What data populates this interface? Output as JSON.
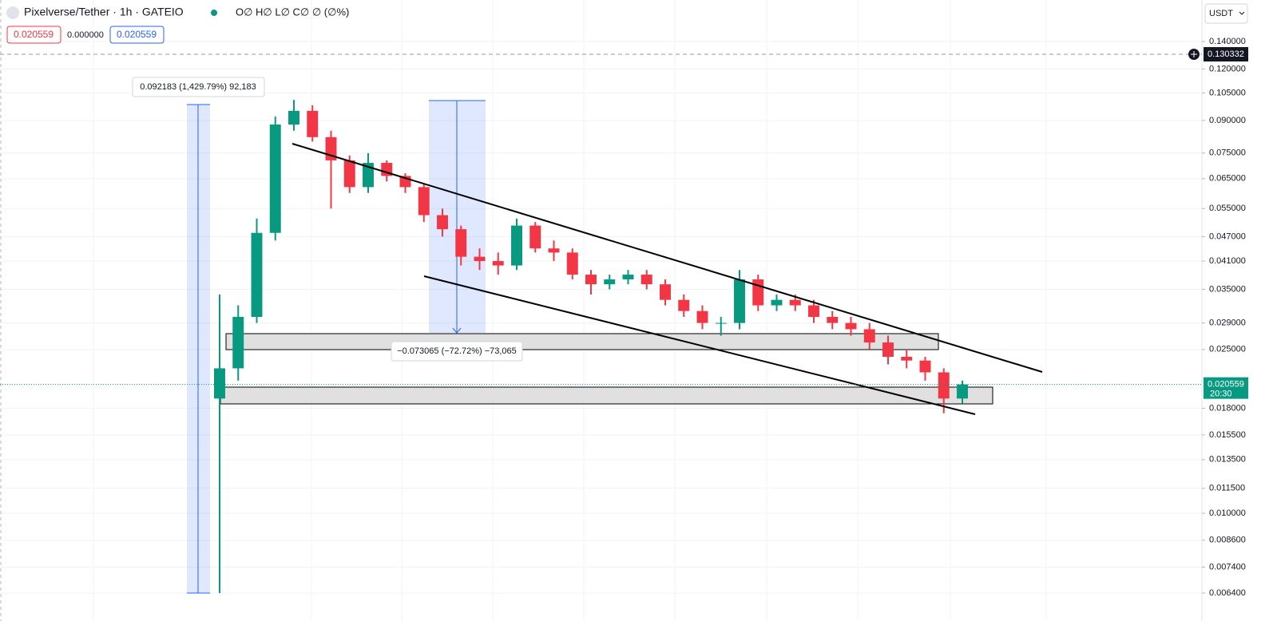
{
  "header": {
    "symbol": "Pixelverse/Tether · 1h · GATEIO",
    "ohlc": "O∅ H∅ L∅ C∅ ∅ (∅%)",
    "sell": "0.020559",
    "spread": "0.000000",
    "buy": "0.020559",
    "currency": "USDT"
  },
  "annotations": {
    "rise": "0.092183 (1,429.79%) 92,183",
    "fall": "−0.073065 (−72.72%) −73,065"
  },
  "crosshair": {
    "value": 0.130332,
    "label": "0.130332"
  },
  "last_price": {
    "value": 0.020559,
    "label": "0.020559",
    "countdown": "20:30"
  },
  "chart_data": {
    "type": "candlestick",
    "log_scale": true,
    "grid": true,
    "up_color": "#089981",
    "down_color": "#f23645",
    "ylim": [
      0.0064,
      0.14
    ],
    "yticks": [
      {
        "value": 0.14,
        "label": "0.140000"
      },
      {
        "value": 0.12,
        "label": "0.120000"
      },
      {
        "value": 0.105,
        "label": "0.105000"
      },
      {
        "value": 0.09,
        "label": "0.090000"
      },
      {
        "value": 0.075,
        "label": "0.075000"
      },
      {
        "value": 0.065,
        "label": "0.065000"
      },
      {
        "value": 0.055,
        "label": "0.055000"
      },
      {
        "value": 0.047,
        "label": "0.047000"
      },
      {
        "value": 0.041,
        "label": "0.041000"
      },
      {
        "value": 0.035,
        "label": "0.035000"
      },
      {
        "value": 0.029,
        "label": "0.029000"
      },
      {
        "value": 0.025,
        "label": "0.025000"
      },
      {
        "value": 0.018,
        "label": "0.018000"
      },
      {
        "value": 0.0155,
        "label": "0.015500"
      },
      {
        "value": 0.0135,
        "label": "0.013500"
      },
      {
        "value": 0.0115,
        "label": "0.011500"
      },
      {
        "value": 0.01,
        "label": "0.010000"
      },
      {
        "value": 0.0086,
        "label": "0.008600"
      },
      {
        "value": 0.0074,
        "label": "0.007400"
      },
      {
        "value": 0.0064,
        "label": "0.006400"
      }
    ],
    "open": [
      0.019,
      0.0225,
      0.03,
      0.048,
      0.088,
      0.095,
      0.082,
      0.072,
      0.062,
      0.071,
      0.066,
      0.062,
      0.053,
      0.049,
      0.042,
      0.041,
      0.04,
      0.05,
      0.044,
      0.043,
      0.038,
      0.036,
      0.037,
      0.038,
      0.036,
      0.033,
      0.031,
      0.029,
      0.029,
      0.037,
      0.032,
      0.033,
      0.032,
      0.03,
      0.029,
      0.028,
      0.026,
      0.024,
      0.0235,
      0.022,
      0.019
    ],
    "high": [
      0.034,
      0.032,
      0.052,
      0.092,
      0.101,
      0.098,
      0.085,
      0.074,
      0.075,
      0.072,
      0.067,
      0.063,
      0.055,
      0.05,
      0.044,
      0.043,
      0.052,
      0.051,
      0.046,
      0.044,
      0.039,
      0.038,
      0.039,
      0.039,
      0.037,
      0.034,
      0.032,
      0.03,
      0.039,
      0.038,
      0.034,
      0.034,
      0.033,
      0.031,
      0.03,
      0.029,
      0.027,
      0.025,
      0.024,
      0.0225,
      0.021
    ],
    "low": [
      0.0064,
      0.021,
      0.029,
      0.046,
      0.085,
      0.08,
      0.055,
      0.06,
      0.06,
      0.064,
      0.06,
      0.051,
      0.047,
      0.04,
      0.039,
      0.038,
      0.039,
      0.043,
      0.041,
      0.037,
      0.034,
      0.035,
      0.036,
      0.035,
      0.032,
      0.03,
      0.028,
      0.027,
      0.028,
      0.031,
      0.031,
      0.031,
      0.029,
      0.028,
      0.027,
      0.025,
      0.023,
      0.0225,
      0.021,
      0.0175,
      0.0185
    ],
    "close": [
      0.0225,
      0.03,
      0.048,
      0.088,
      0.095,
      0.082,
      0.072,
      0.062,
      0.071,
      0.066,
      0.062,
      0.053,
      0.049,
      0.042,
      0.041,
      0.04,
      0.05,
      0.044,
      0.043,
      0.038,
      0.036,
      0.037,
      0.038,
      0.036,
      0.033,
      0.031,
      0.029,
      0.029,
      0.037,
      0.032,
      0.033,
      0.032,
      0.03,
      0.029,
      0.028,
      0.026,
      0.024,
      0.0235,
      0.022,
      0.019,
      0.020559
    ]
  }
}
